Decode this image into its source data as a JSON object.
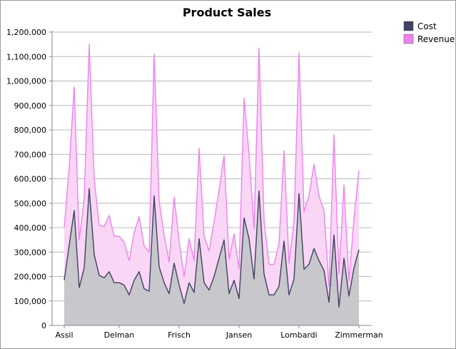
{
  "chart_data": {
    "type": "area",
    "title": "Product Sales",
    "xlabel": "",
    "ylabel": "",
    "ylim": [
      0,
      1200000
    ],
    "yticks": [
      0,
      100000,
      200000,
      300000,
      400000,
      500000,
      600000,
      700000,
      800000,
      900000,
      1000000,
      1100000,
      1200000
    ],
    "ytick_labels": [
      "0",
      "100,000",
      "200,000",
      "300,000",
      "400,000",
      "500,000",
      "600,000",
      "700,000",
      "800,000",
      "900,000",
      "1,000,000",
      "1,100,000",
      "1,200,000"
    ],
    "x_count": 60,
    "xtick_labels": [
      {
        "index": 0,
        "label": "Assil"
      },
      {
        "index": 11,
        "label": "Delman"
      },
      {
        "index": 23,
        "label": "Frisch"
      },
      {
        "index": 35,
        "label": "Jansen"
      },
      {
        "index": 47,
        "label": "Lombardi"
      },
      {
        "index": 59,
        "label": "Zimmerman"
      }
    ],
    "grid": true,
    "legend_position": "top-right",
    "series": [
      {
        "name": "Revenue",
        "color": "#ee82ee",
        "fill": "#f9d6f6",
        "values": [
          400000,
          650000,
          975000,
          350000,
          520000,
          1150000,
          600000,
          410000,
          405000,
          450000,
          365000,
          365000,
          340000,
          265000,
          380000,
          445000,
          325000,
          300000,
          1110000,
          510000,
          370000,
          260000,
          525000,
          345000,
          200000,
          355000,
          265000,
          725000,
          365000,
          305000,
          425000,
          555000,
          695000,
          270000,
          375000,
          230000,
          930000,
          700000,
          395000,
          1135000,
          430000,
          250000,
          250000,
          335000,
          715000,
          255000,
          425000,
          1115000,
          465000,
          530000,
          660000,
          530000,
          470000,
          160000,
          780000,
          210000,
          575000,
          180000,
          435000,
          635000
        ]
      },
      {
        "name": "Cost",
        "color": "#404060",
        "fill": "#c8c8cc",
        "values": [
          185000,
          330000,
          470000,
          155000,
          235000,
          560000,
          290000,
          205000,
          195000,
          220000,
          175000,
          175000,
          165000,
          125000,
          185000,
          220000,
          150000,
          140000,
          530000,
          240000,
          175000,
          130000,
          255000,
          165000,
          90000,
          175000,
          135000,
          355000,
          175000,
          145000,
          200000,
          275000,
          350000,
          130000,
          185000,
          110000,
          440000,
          355000,
          190000,
          550000,
          210000,
          125000,
          125000,
          160000,
          345000,
          125000,
          190000,
          540000,
          230000,
          250000,
          315000,
          265000,
          225000,
          95000,
          370000,
          75000,
          275000,
          120000,
          235000,
          310000
        ]
      }
    ]
  }
}
